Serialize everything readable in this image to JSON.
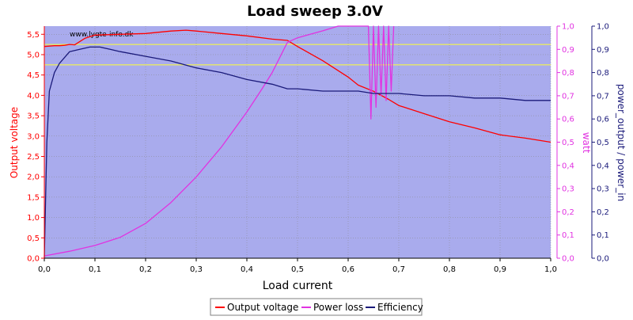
{
  "chart_data": {
    "type": "line",
    "title": "Load sweep 3.0V",
    "xlabel": "Load current",
    "watermark": "www.lygte-info.dk",
    "colors": {
      "plot_background": "#a9abed",
      "output_voltage": "#ff0000",
      "power_loss": "#e133e1",
      "efficiency": "#1a1a7a",
      "reference_lines": "#ffff33",
      "grid": "#888888"
    },
    "xlim": [
      0,
      1.0
    ],
    "x_ticks": [
      "0,0",
      "0,1",
      "0,2",
      "0,3",
      "0,4",
      "0,5",
      "0,6",
      "0,7",
      "0,8",
      "0,9",
      "1,0"
    ],
    "axes": {
      "left": {
        "label": "Output voltage",
        "lim": [
          0,
          5.7
        ],
        "ticks": [
          "0,0",
          "0,5",
          "1,0",
          "1,5",
          "2,0",
          "2,5",
          "3,0",
          "3,5",
          "4,0",
          "4,5",
          "5,0",
          "5,5"
        ]
      },
      "right1": {
        "label": "watt",
        "lim": [
          0,
          1.0
        ],
        "ticks": [
          "0,0",
          "0,1",
          "0,2",
          "0,3",
          "0,4",
          "0,5",
          "0,6",
          "0,7",
          "0,8",
          "0,9",
          "1,0"
        ]
      },
      "right2": {
        "label": "power_output / power_in",
        "lim": [
          0,
          1.0
        ],
        "ticks": [
          "0,0",
          "0,1",
          "0,2",
          "0,3",
          "0,4",
          "0,5",
          "0,6",
          "0,7",
          "0,8",
          "0,9",
          "1,0"
        ]
      }
    },
    "reference_lines": [
      5.25,
      4.75
    ],
    "grid": true,
    "legend_position": "bottom-center",
    "series": [
      {
        "name": "Output voltage",
        "axis": "left",
        "x": [
          0.0,
          0.01,
          0.02,
          0.03,
          0.04,
          0.05,
          0.06,
          0.08,
          0.1,
          0.15,
          0.2,
          0.25,
          0.28,
          0.3,
          0.35,
          0.4,
          0.45,
          0.48,
          0.5,
          0.55,
          0.6,
          0.62,
          0.65,
          0.68,
          0.7,
          0.75,
          0.8,
          0.85,
          0.9,
          0.95,
          1.0
        ],
        "y": [
          5.2,
          5.21,
          5.22,
          5.22,
          5.23,
          5.25,
          5.24,
          5.4,
          5.48,
          5.5,
          5.52,
          5.58,
          5.6,
          5.58,
          5.52,
          5.46,
          5.38,
          5.35,
          5.2,
          4.85,
          4.45,
          4.25,
          4.1,
          3.9,
          3.75,
          3.55,
          3.35,
          3.2,
          3.03,
          2.95,
          2.85
        ]
      },
      {
        "name": "Power loss",
        "axis": "right1",
        "x": [
          0.0,
          0.05,
          0.1,
          0.15,
          0.2,
          0.25,
          0.3,
          0.35,
          0.4,
          0.43,
          0.45,
          0.48,
          0.5,
          0.55,
          0.58,
          0.6,
          0.62,
          0.64,
          0.645,
          0.65,
          0.655,
          0.66,
          0.665,
          0.67,
          0.675,
          0.68,
          0.685,
          0.69
        ],
        "y": [
          0.01,
          0.03,
          0.055,
          0.09,
          0.15,
          0.24,
          0.35,
          0.48,
          0.63,
          0.73,
          0.8,
          0.93,
          0.95,
          0.98,
          1.0,
          1.0,
          1.0,
          1.0,
          0.6,
          1.0,
          0.65,
          1.0,
          0.7,
          1.0,
          0.68,
          1.0,
          0.72,
          1.0
        ]
      },
      {
        "name": "Efficiency",
        "axis": "right2",
        "x": [
          0.0,
          0.005,
          0.01,
          0.02,
          0.03,
          0.05,
          0.07,
          0.09,
          0.11,
          0.13,
          0.15,
          0.2,
          0.25,
          0.3,
          0.35,
          0.4,
          0.45,
          0.48,
          0.5,
          0.55,
          0.6,
          0.62,
          0.65,
          0.68,
          0.7,
          0.75,
          0.8,
          0.85,
          0.9,
          0.95,
          1.0
        ],
        "y": [
          0.0,
          0.5,
          0.72,
          0.8,
          0.84,
          0.89,
          0.9,
          0.91,
          0.91,
          0.9,
          0.89,
          0.87,
          0.85,
          0.82,
          0.8,
          0.77,
          0.75,
          0.73,
          0.73,
          0.72,
          0.72,
          0.72,
          0.71,
          0.71,
          0.71,
          0.7,
          0.7,
          0.69,
          0.69,
          0.68,
          0.68
        ]
      }
    ]
  }
}
